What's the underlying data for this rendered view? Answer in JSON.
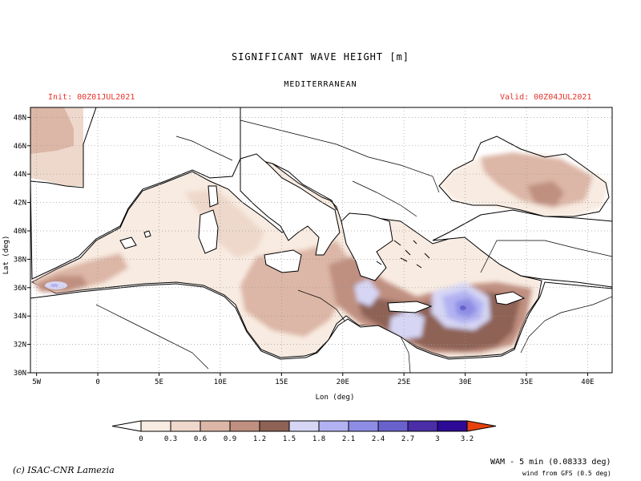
{
  "header": {
    "title": "SIGNIFICANT WAVE HEIGHT [m]",
    "region": "MEDITERRANEAN",
    "init": "Init: 00Z01JUL2021",
    "valid": "Valid: 00Z04JUL2021"
  },
  "axes": {
    "x_label": "Lon (deg)",
    "y_label": "Lat (deg)",
    "x_ticks": [
      {
        "lon": -5,
        "label": "5W"
      },
      {
        "lon": 0,
        "label": "0"
      },
      {
        "lon": 5,
        "label": "5E"
      },
      {
        "lon": 10,
        "label": "10E"
      },
      {
        "lon": 15,
        "label": "15E"
      },
      {
        "lon": 20,
        "label": "20E"
      },
      {
        "lon": 25,
        "label": "25E"
      },
      {
        "lon": 30,
        "label": "30E"
      },
      {
        "lon": 35,
        "label": "35E"
      },
      {
        "lon": 40,
        "label": "40E"
      }
    ],
    "y_ticks": [
      {
        "lat": 30,
        "label": "30N"
      },
      {
        "lat": 32,
        "label": "32N"
      },
      {
        "lat": 34,
        "label": "34N"
      },
      {
        "lat": 36,
        "label": "36N"
      },
      {
        "lat": 38,
        "label": "38N"
      },
      {
        "lat": 40,
        "label": "40N"
      },
      {
        "lat": 42,
        "label": "42N"
      },
      {
        "lat": 44,
        "label": "44N"
      },
      {
        "lat": 46,
        "label": "46N"
      },
      {
        "lat": 48,
        "label": "48N"
      }
    ],
    "lon_range": [
      -5.5,
      42
    ],
    "lat_range": [
      30,
      48.7
    ],
    "grid": true
  },
  "colorbar": {
    "labels": [
      "0",
      "0.3",
      "0.6",
      "0.9",
      "1.2",
      "1.5",
      "1.8",
      "2.1",
      "2.4",
      "2.7",
      "3",
      "3.2"
    ],
    "colors": [
      "#f8ebe1",
      "#eed8cb",
      "#dcb6a6",
      "#bf8f80",
      "#8e6255",
      "#d6d6f4",
      "#b2b2f2",
      "#8d8de6",
      "#6a62cc",
      "#4a2ea8",
      "#2c0a96"
    ],
    "under_color": "#ffffff",
    "over_color": "#e8400e"
  },
  "chart_data": {
    "type": "heatmap",
    "variable": "SIGNIFICANT WAVE HEIGHT [m]",
    "region": "MEDITERRANEAN",
    "levels": [
      0,
      0.3,
      0.6,
      0.9,
      1.2,
      1.5,
      1.8,
      2.1,
      2.4,
      2.7,
      3,
      3.2
    ],
    "xlabel": "Lon (deg)",
    "ylabel": "Lat (deg)",
    "xlim": [
      -5.5,
      42
    ],
    "ylim": [
      30,
      48.7
    ],
    "grid": true,
    "features": [
      {
        "area": "Eastern Levantine basin (~29-31E, 33.5-35.5N)",
        "value_range": [
          1.8,
          2.4
        ]
      },
      {
        "area": "South-central Levantine / Libyan Sea",
        "value_range": [
          1.2,
          1.8
        ]
      },
      {
        "area": "South of Crete",
        "value_range": [
          1.5,
          1.8
        ]
      },
      {
        "area": "Alboran Sea (~4.5W-2.5W, 36N)",
        "value_range": [
          1.2,
          1.8
        ]
      },
      {
        "area": "Western Mediterranean",
        "value_range": [
          0,
          0.6
        ]
      },
      {
        "area": "Black Sea (east ~37E, 42N)",
        "value_range": [
          0.9,
          1.2
        ]
      }
    ]
  },
  "footer": {
    "credit": "(c) ISAC-CNR Lamezia",
    "model": "WAM - 5 min (0.08333 deg)",
    "wind": "wind from GFS (0.5 deg)"
  }
}
